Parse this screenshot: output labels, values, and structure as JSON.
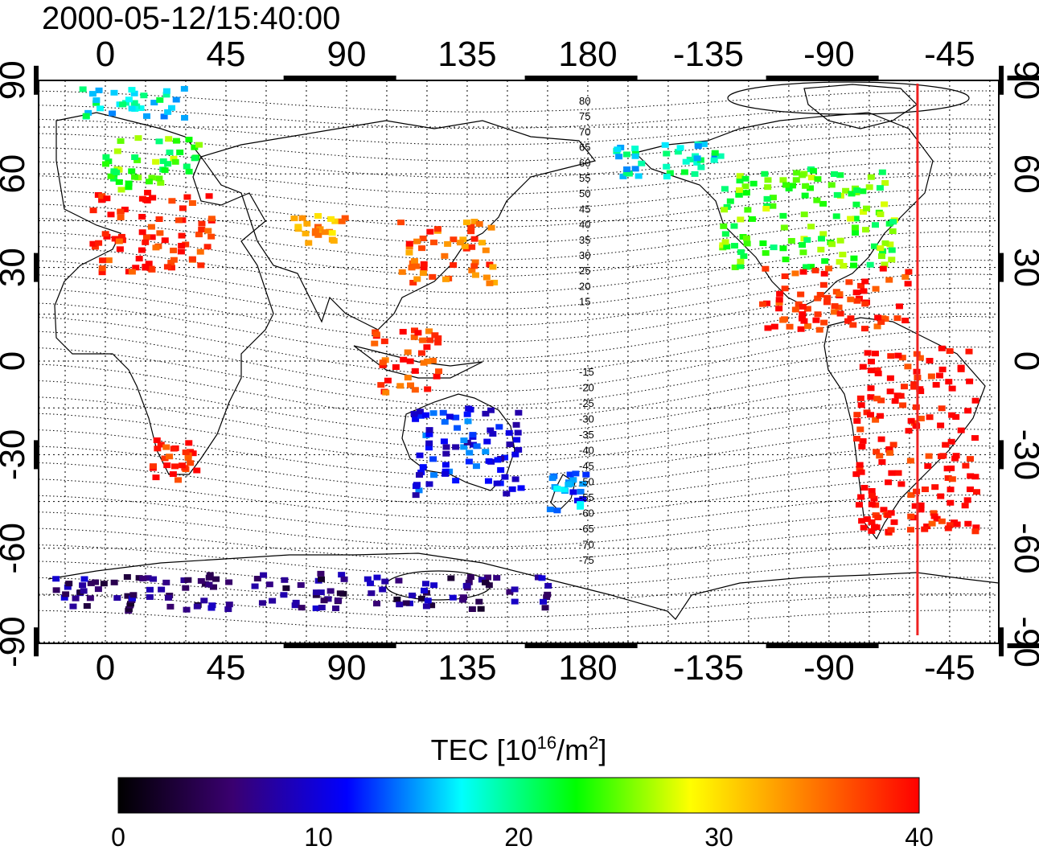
{
  "title": "2000-05-12/15:40:00",
  "map": {
    "lon_ticks": [
      "0",
      "45",
      "90",
      "135",
      "180",
      "-135",
      "-90",
      "-45"
    ],
    "lat_ticks": [
      "90",
      "60",
      "30",
      "0",
      "-30",
      "-60",
      "-90"
    ],
    "magnetic_latitude_labels_north": [
      "80",
      "75",
      "70",
      "65",
      "60",
      "55",
      "50",
      "45",
      "40",
      "35",
      "30",
      "25",
      "20",
      "15"
    ],
    "magnetic_latitude_labels_south": [
      "-15",
      "-20",
      "-25",
      "-30",
      "-35",
      "-40",
      "-45",
      "-50",
      "-55",
      "-60",
      "-65",
      "-70",
      "-75"
    ],
    "terminator_longitude": -57,
    "terminator_color": "#ee2222"
  },
  "colorbar": {
    "title_prefix": "TEC  [10",
    "title_sup1": "16",
    "title_mid": "/m",
    "title_sup2": "2",
    "title_suffix": "]",
    "ticks": [
      "0",
      "10",
      "20",
      "30",
      "40"
    ],
    "min": 0,
    "max": 40,
    "colors": [
      "#000000",
      "#3a0070",
      "#0000ff",
      "#00ffff",
      "#00ff00",
      "#ffff00",
      "#ff8000",
      "#ff0000"
    ]
  },
  "tec_regions": [
    {
      "name": "europe",
      "lon": [
        -5,
        40
      ],
      "lat": [
        28,
        55
      ],
      "tec": 39
    },
    {
      "name": "scandinavia",
      "lon": [
        0,
        35
      ],
      "lat": [
        55,
        72
      ],
      "tec": 24
    },
    {
      "name": "central-asia",
      "lon": [
        70,
        90
      ],
      "lat": [
        38,
        48
      ],
      "tec": 33
    },
    {
      "name": "east-asia",
      "lon": [
        110,
        145
      ],
      "lat": [
        25,
        45
      ],
      "tec": 36
    },
    {
      "name": "north-america",
      "lon": [
        -130,
        -65
      ],
      "lat": [
        30,
        62
      ],
      "tec": 24
    },
    {
      "name": "alaska",
      "lon": [
        -170,
        -130
      ],
      "lat": [
        58,
        70
      ],
      "tec": 18
    },
    {
      "name": "central-america",
      "lon": [
        -115,
        -60
      ],
      "lat": [
        10,
        30
      ],
      "tec": 39
    },
    {
      "name": "south-america",
      "lon": [
        -80,
        -35
      ],
      "lat": [
        -55,
        5
      ],
      "tec": 40
    },
    {
      "name": "south-africa",
      "lon": [
        15,
        35
      ],
      "lat": [
        -38,
        -25
      ],
      "tec": 39
    },
    {
      "name": "southeast-asia",
      "lon": [
        100,
        125
      ],
      "lat": [
        -10,
        10
      ],
      "tec": 38
    },
    {
      "name": "australia",
      "lon": [
        115,
        155
      ],
      "lat": [
        -45,
        -15
      ],
      "tec": 11
    },
    {
      "name": "new-zealand",
      "lon": [
        165,
        180
      ],
      "lat": [
        -48,
        -35
      ],
      "tec": 14
    },
    {
      "name": "antarctica",
      "lon": [
        -20,
        170
      ],
      "lat": [
        -80,
        -68
      ],
      "tec": 6
    },
    {
      "name": "arctic-north",
      "lon": [
        -10,
        30
      ],
      "lat": [
        78,
        88
      ],
      "tec": 18
    }
  ]
}
